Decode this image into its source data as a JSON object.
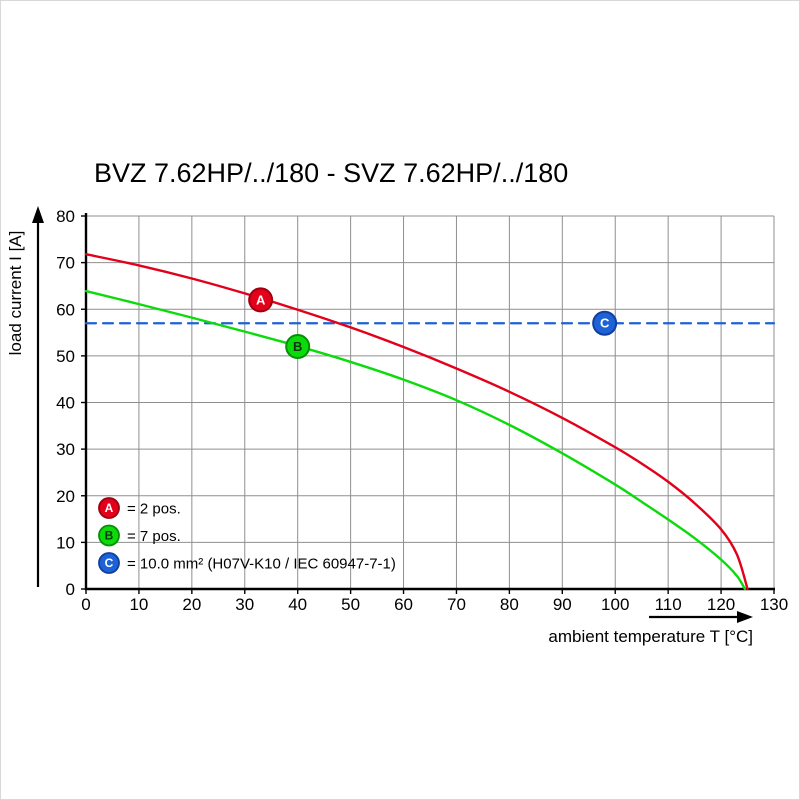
{
  "title": "BVZ 7.62HP/../180 - SVZ 7.62HP/../180",
  "colors": {
    "background": "#ffffff",
    "grid": "#8f8f8f",
    "axis": "#000000",
    "text": "#000000",
    "series_red": "#e2001a",
    "series_green": "#0bdb0b",
    "series_blue": "#1e62d8"
  },
  "chart_data": {
    "type": "line",
    "title": "BVZ 7.62HP/../180 - SVZ 7.62HP/../180",
    "xlabel": "ambient temperature T [°C]",
    "ylabel": "load current I [A]",
    "xlim": [
      0,
      130
    ],
    "ylim": [
      0,
      80
    ],
    "x_ticks": [
      0,
      10,
      20,
      30,
      40,
      50,
      60,
      70,
      80,
      90,
      100,
      110,
      120,
      130
    ],
    "y_ticks": [
      0,
      10,
      20,
      30,
      40,
      50,
      60,
      70,
      80
    ],
    "grid": true,
    "legend_position": "inside-bottom-left",
    "series": [
      {
        "id": "A",
        "legend_label": "= 2 pos.",
        "color": "#e2001a",
        "ring_color": "#9e0012",
        "letter_color": "#ffffff",
        "line_style": "solid",
        "marker_point": {
          "x": 33,
          "y": 62
        },
        "points": [
          [
            0,
            71.8
          ],
          [
            10,
            69.4
          ],
          [
            20,
            66.6
          ],
          [
            30,
            63.4
          ],
          [
            40,
            59.9
          ],
          [
            50,
            56.1
          ],
          [
            60,
            51.9
          ],
          [
            70,
            47.3
          ],
          [
            80,
            42.3
          ],
          [
            90,
            36.7
          ],
          [
            100,
            30.4
          ],
          [
            105,
            26.9
          ],
          [
            110,
            23.0
          ],
          [
            115,
            18.4
          ],
          [
            120,
            12.8
          ],
          [
            123,
            7.4
          ],
          [
            125,
            0
          ]
        ]
      },
      {
        "id": "B",
        "legend_label": "= 7 pos.",
        "color": "#0bdb0b",
        "ring_color": "#078f07",
        "letter_color": "#103310",
        "line_style": "solid",
        "marker_point": {
          "x": 40,
          "y": 52
        },
        "points": [
          [
            0,
            63.9
          ],
          [
            10,
            61.1
          ],
          [
            20,
            58.2
          ],
          [
            30,
            55.2
          ],
          [
            40,
            52.1
          ],
          [
            50,
            48.7
          ],
          [
            60,
            44.9
          ],
          [
            70,
            40.5
          ],
          [
            80,
            35.2
          ],
          [
            90,
            29.1
          ],
          [
            100,
            22.4
          ],
          [
            105,
            18.7
          ],
          [
            110,
            14.9
          ],
          [
            115,
            10.9
          ],
          [
            120,
            6.3
          ],
          [
            123,
            2.8
          ],
          [
            124.5,
            0
          ]
        ]
      },
      {
        "id": "C",
        "legend_label": "= 10.0 mm² (H07V-K10 / IEC 60947-7-1)",
        "color": "#1e62d8",
        "ring_color": "#123f9e",
        "letter_color": "#ffffff",
        "line_style": "dashed",
        "marker_point": {
          "x": 98,
          "y": 57
        },
        "points": [
          [
            0,
            57
          ],
          [
            130,
            57
          ]
        ]
      }
    ]
  }
}
